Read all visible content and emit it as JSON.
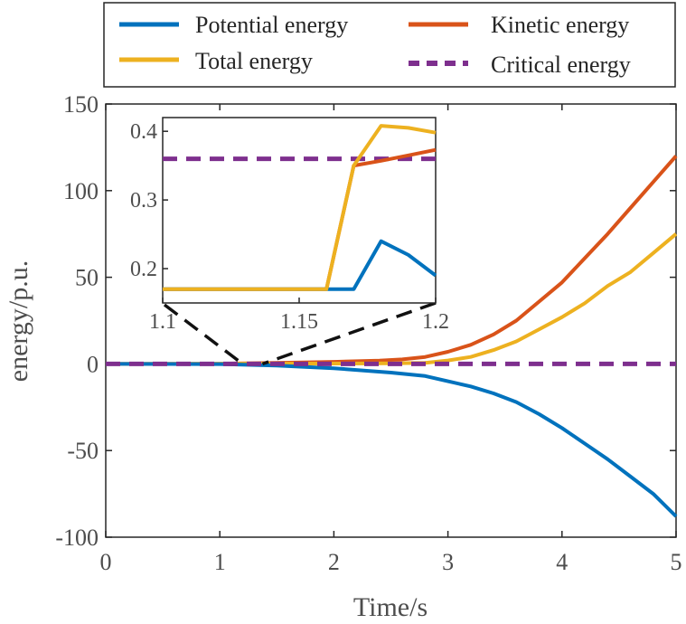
{
  "chart_data": {
    "type": "line",
    "title": "",
    "xlabel": "Time/s",
    "ylabel": "energy/p.u.",
    "xlim": [
      0,
      5
    ],
    "ylim": [
      -100,
      150
    ],
    "xticks": [
      0,
      1,
      2,
      3,
      4,
      5
    ],
    "yticks": [
      -100,
      -50,
      0,
      50,
      100,
      150
    ],
    "xtick_labels": [
      "0",
      "1",
      "2",
      "3",
      "4",
      "5"
    ],
    "ytick_labels": [
      "-100",
      "-50",
      "0",
      "50",
      "100",
      "150"
    ],
    "grid": false,
    "legend_position": "top (outside plot)",
    "legend": [
      {
        "name": "Potential energy",
        "color": "#0072BD",
        "style": "solid"
      },
      {
        "name": "Kinetic energy",
        "color": "#D95319",
        "style": "solid"
      },
      {
        "name": "Total energy",
        "color": "#EDB120",
        "style": "solid"
      },
      {
        "name": "Critical energy",
        "color": "#7E2F8E",
        "style": "dashed"
      }
    ],
    "series": [
      {
        "name": "Kinetic energy",
        "color": "#D95319",
        "points": [
          [
            0,
            0
          ],
          [
            1,
            0.1
          ],
          [
            1.5,
            0.6
          ],
          [
            2,
            1.2
          ],
          [
            2.4,
            1.9
          ],
          [
            2.6,
            2.6
          ],
          [
            2.8,
            4
          ],
          [
            3,
            7
          ],
          [
            3.2,
            11
          ],
          [
            3.4,
            17
          ],
          [
            3.6,
            25
          ],
          [
            3.8,
            36
          ],
          [
            4,
            47
          ],
          [
            4.2,
            61
          ],
          [
            4.4,
            75
          ],
          [
            4.6,
            90
          ],
          [
            4.8,
            105
          ],
          [
            5,
            120
          ]
        ]
      },
      {
        "name": "Total energy",
        "color": "#EDB120",
        "points": [
          [
            0,
            0
          ],
          [
            1,
            0.1
          ],
          [
            2,
            0.2
          ],
          [
            2.5,
            0.3
          ],
          [
            2.8,
            0.6
          ],
          [
            3,
            2
          ],
          [
            3.2,
            4
          ],
          [
            3.4,
            8
          ],
          [
            3.6,
            13
          ],
          [
            3.8,
            20
          ],
          [
            4,
            27
          ],
          [
            4.2,
            35
          ],
          [
            4.4,
            45
          ],
          [
            4.6,
            53
          ],
          [
            4.8,
            64
          ],
          [
            5,
            75
          ]
        ]
      },
      {
        "name": "Potential energy",
        "color": "#0072BD",
        "points": [
          [
            0,
            0
          ],
          [
            1,
            -0.1
          ],
          [
            1.5,
            -1
          ],
          [
            2,
            -2.5
          ],
          [
            2.5,
            -5
          ],
          [
            2.8,
            -7
          ],
          [
            3,
            -10
          ],
          [
            3.2,
            -13
          ],
          [
            3.4,
            -17
          ],
          [
            3.6,
            -22
          ],
          [
            3.8,
            -29
          ],
          [
            4,
            -37
          ],
          [
            4.2,
            -46
          ],
          [
            4.4,
            -55
          ],
          [
            4.6,
            -65
          ],
          [
            4.8,
            -75
          ],
          [
            5,
            -88
          ]
        ]
      },
      {
        "name": "Critical energy",
        "color": "#7E2F8E",
        "style": "dashed",
        "points": [
          [
            0,
            0.36
          ],
          [
            5,
            0.36
          ]
        ]
      }
    ],
    "inset": {
      "xlim": [
        1.1,
        1.2
      ],
      "ylim": [
        0.15,
        0.42
      ],
      "xticks": [
        1.1,
        1.15,
        1.2
      ],
      "yticks": [
        0.2,
        0.3,
        0.4
      ],
      "xtick_labels": [
        "1.1",
        "1.15",
        "1.2"
      ],
      "ytick_labels": [
        "0.2",
        "0.3",
        "0.4"
      ],
      "zoom_origin": [
        1.2,
        0
      ],
      "series": [
        {
          "name": "Critical energy",
          "color": "#7E2F8E",
          "style": "dashed",
          "points": [
            [
              1.1,
              0.36
            ],
            [
              1.2,
              0.36
            ]
          ]
        },
        {
          "name": "Kinetic energy",
          "color": "#D95319",
          "points": [
            [
              1.1,
              0.17
            ],
            [
              1.16,
              0.17
            ],
            [
              1.17,
              0.35
            ],
            [
              1.18,
              0.357
            ],
            [
              1.19,
              0.365
            ],
            [
              1.2,
              0.373
            ]
          ]
        },
        {
          "name": "Potential energy",
          "color": "#0072BD",
          "points": [
            [
              1.1,
              0.17
            ],
            [
              1.17,
              0.17
            ],
            [
              1.18,
              0.24
            ],
            [
              1.19,
              0.22
            ],
            [
              1.2,
              0.19
            ]
          ]
        },
        {
          "name": "Total energy",
          "color": "#EDB120",
          "points": [
            [
              1.1,
              0.17
            ],
            [
              1.16,
              0.17
            ],
            [
              1.17,
              0.35
            ],
            [
              1.18,
              0.408
            ],
            [
              1.19,
              0.405
            ],
            [
              1.2,
              0.398
            ]
          ]
        }
      ]
    }
  }
}
